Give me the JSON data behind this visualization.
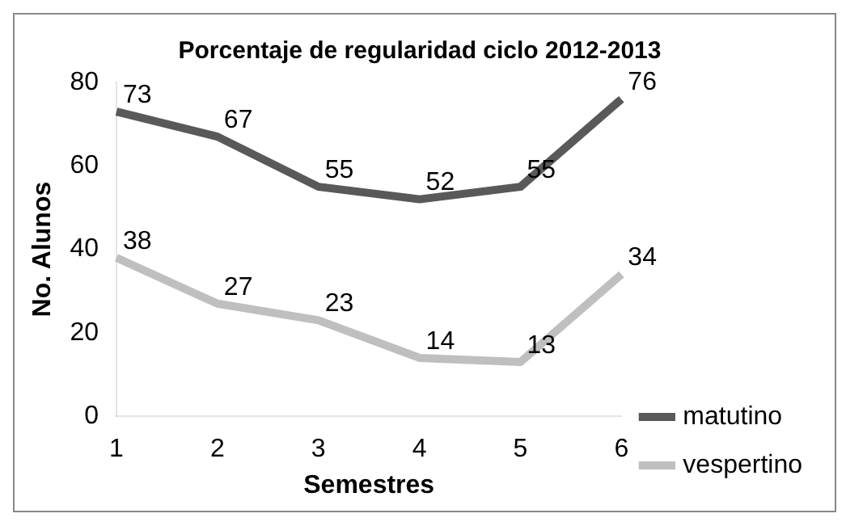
{
  "chart_data": {
    "type": "line",
    "title": "Porcentaje de regularidad ciclo 2012-2013",
    "xlabel": "Semestres",
    "ylabel": "No. Alunos",
    "categories": [
      "1",
      "2",
      "3",
      "4",
      "5",
      "6"
    ],
    "series": [
      {
        "name": "matutino",
        "color": "#595959",
        "values": [
          73,
          67,
          55,
          52,
          55,
          76
        ]
      },
      {
        "name": "vespertino",
        "color": "#bfbfbf",
        "values": [
          38,
          27,
          23,
          14,
          13,
          34
        ]
      }
    ],
    "ylim": [
      0,
      80
    ],
    "yticks": [
      0,
      20,
      40,
      60,
      80
    ],
    "grid": false,
    "legend": "right",
    "marker": "none",
    "data_labels": true
  }
}
